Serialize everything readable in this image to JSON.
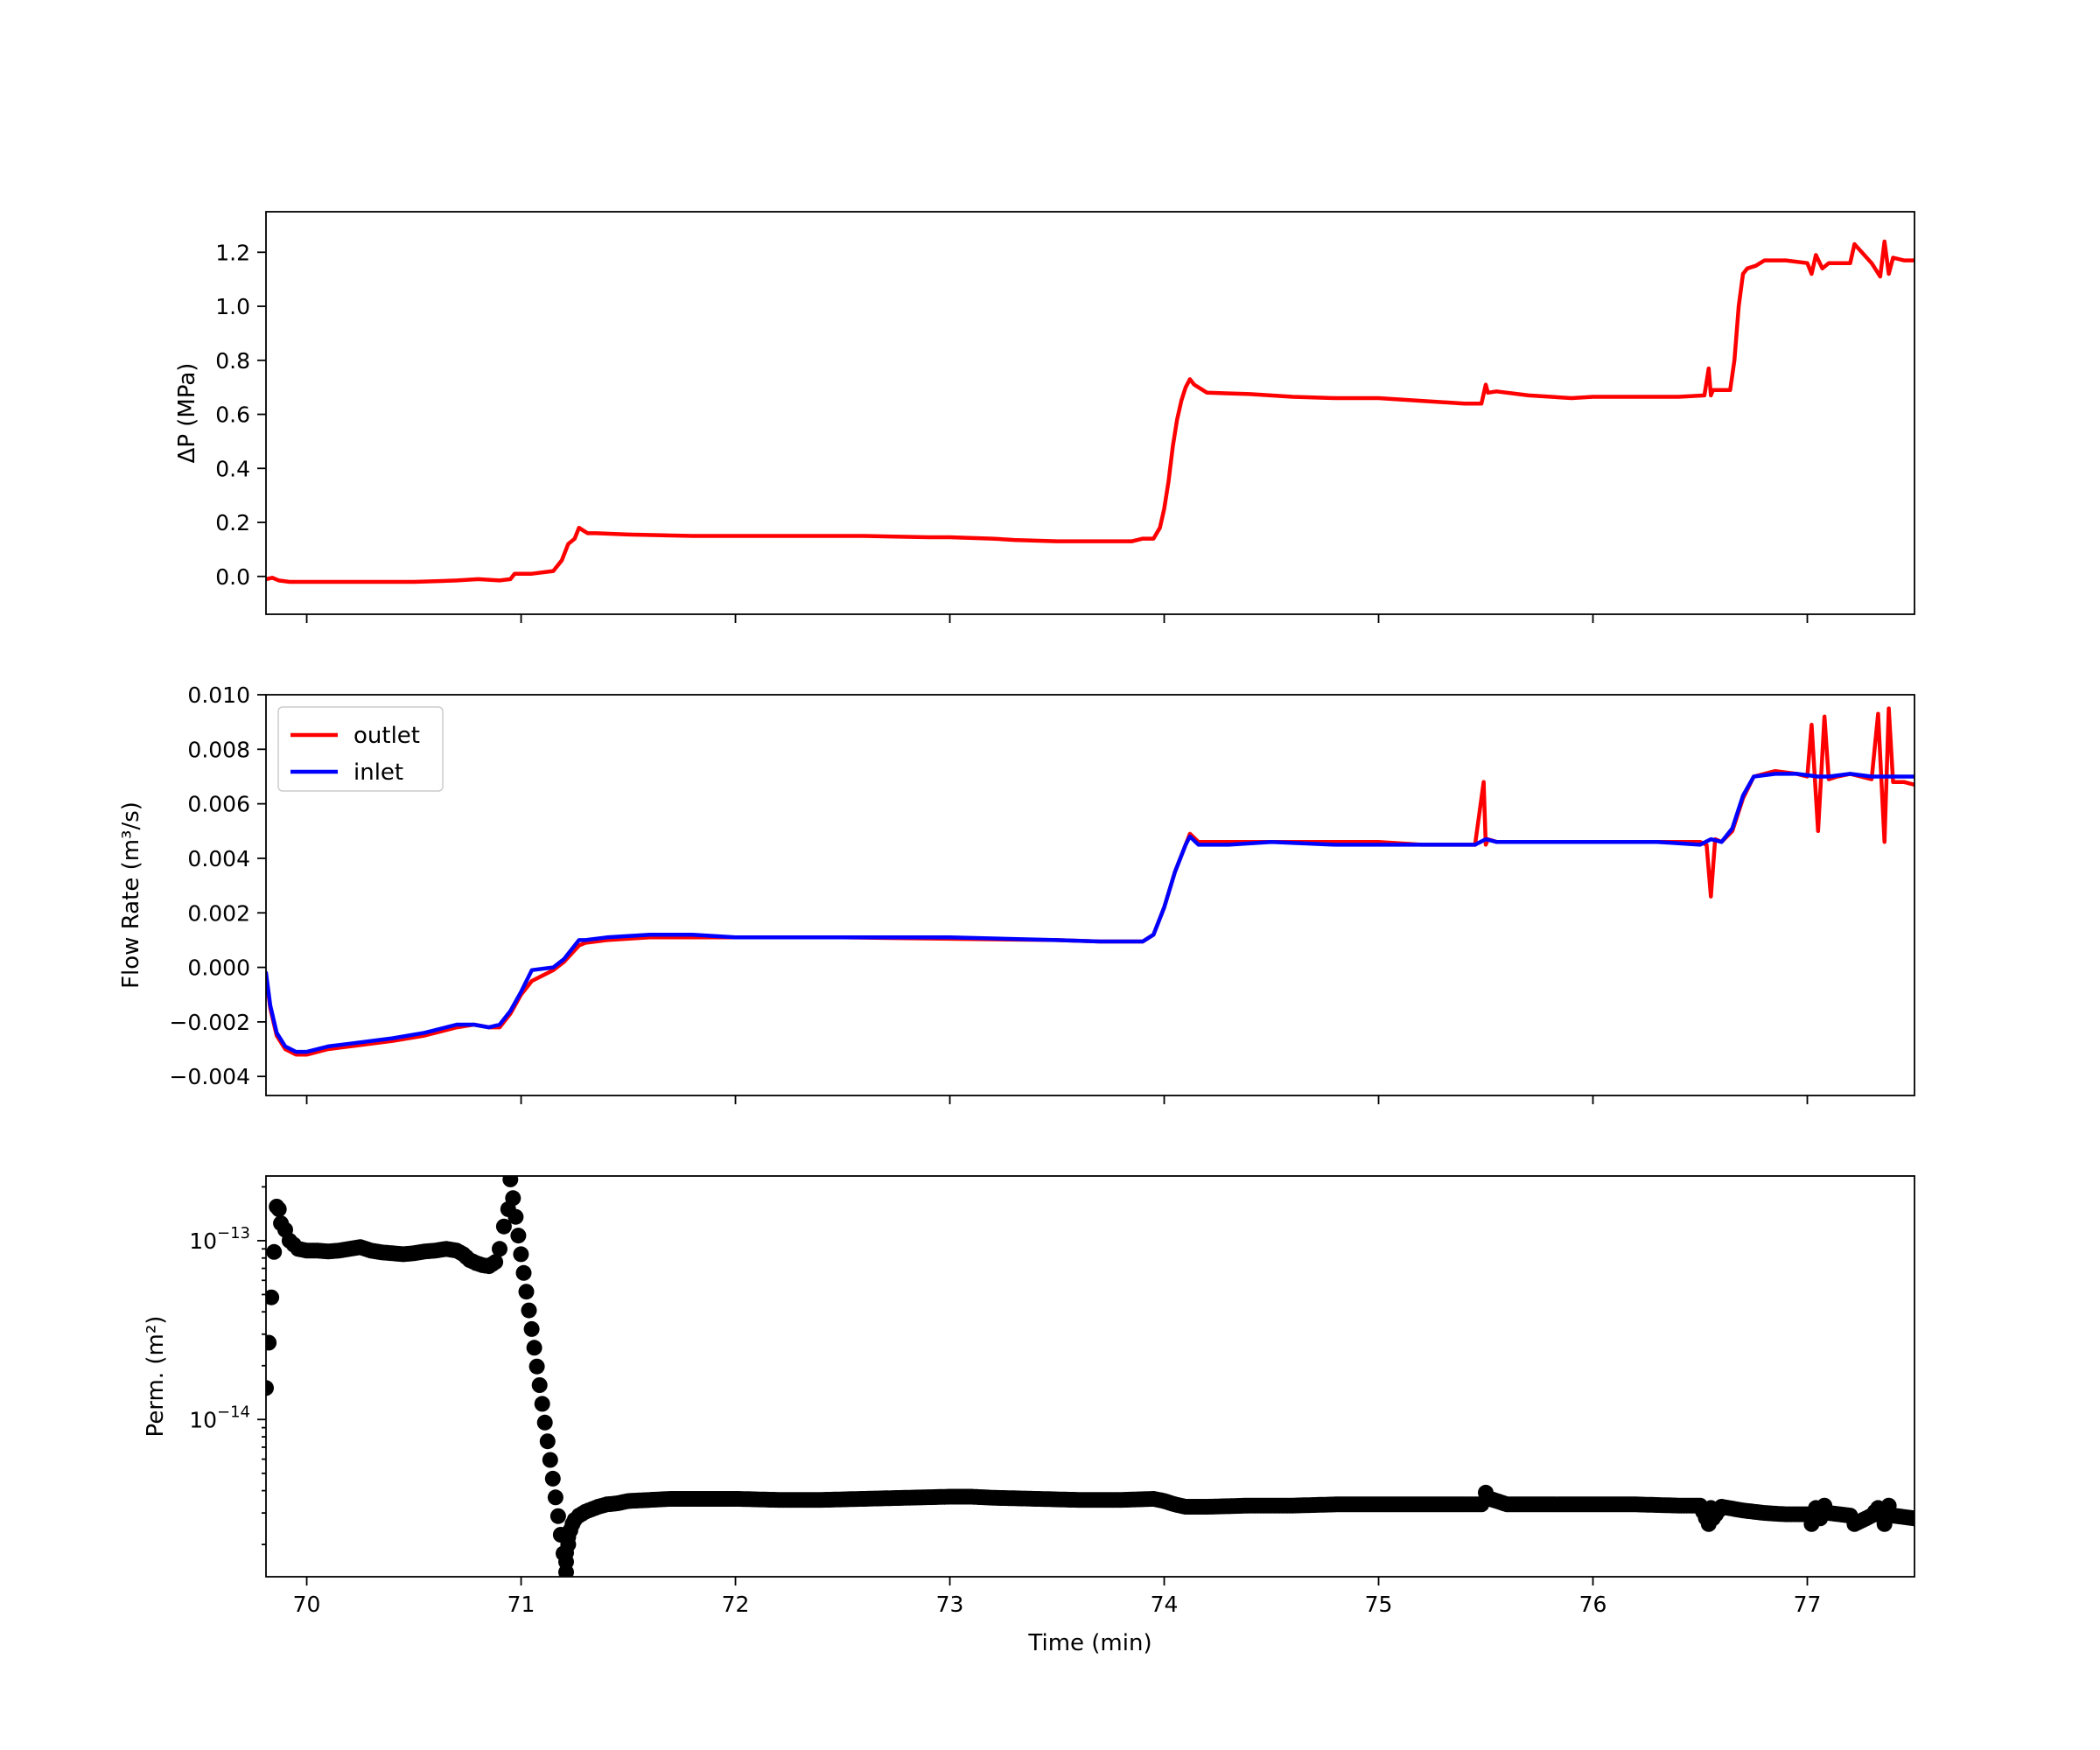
{
  "colors": {
    "outlet": "#ff0000",
    "inlet": "#0000ff",
    "perm": "#000000"
  },
  "chart_data": [
    {
      "type": "line",
      "title": "",
      "xlabel": "",
      "ylabel": "ΔP (MPa)",
      "xlim": [
        69.81,
        77.5
      ],
      "ylim": [
        -0.14,
        1.35
      ],
      "x_ticks": [
        70,
        71,
        72,
        73,
        74,
        75,
        76,
        77
      ],
      "x_tick_labels_visible": false,
      "y_ticks": [
        0.0,
        0.2,
        0.4,
        0.6,
        0.8,
        1.0,
        1.2
      ],
      "y_tick_labels": [
        "0.0",
        "0.2",
        "0.4",
        "0.6",
        "0.8",
        "1.0",
        "1.2"
      ],
      "grid": false,
      "series": [
        {
          "color": "#ff0000",
          "x": [
            69.81,
            69.84,
            69.87,
            69.92,
            70.2,
            70.5,
            70.7,
            70.8,
            70.9,
            70.95,
            70.97,
            71.0,
            71.05,
            71.15,
            71.19,
            71.22,
            71.25,
            71.27,
            71.29,
            71.31,
            71.35,
            71.5,
            71.8,
            72.0,
            72.3,
            72.6,
            72.9,
            73.0,
            73.2,
            73.3,
            73.5,
            73.7,
            73.85,
            73.9,
            73.95,
            73.98,
            74.0,
            74.02,
            74.04,
            74.06,
            74.08,
            74.1,
            74.12,
            74.14,
            74.2,
            74.4,
            74.6,
            74.8,
            75.0,
            75.2,
            75.4,
            75.48,
            75.5,
            75.51,
            75.55,
            75.7,
            75.9,
            76.0,
            76.2,
            76.4,
            76.52,
            76.54,
            76.55,
            76.56,
            76.58,
            76.6,
            76.64,
            76.66,
            76.68,
            76.7,
            76.72,
            76.76,
            76.8,
            76.9,
            77.0,
            77.02,
            77.04,
            77.07,
            77.1,
            77.12,
            77.2,
            77.22,
            77.3,
            77.34,
            77.36,
            77.38,
            77.4,
            77.45,
            77.5
          ],
          "y": [
            -0.01,
            -0.005,
            -0.015,
            -0.02,
            -0.02,
            -0.02,
            -0.015,
            -0.01,
            -0.015,
            -0.01,
            0.01,
            0.01,
            0.01,
            0.02,
            0.06,
            0.12,
            0.14,
            0.18,
            0.17,
            0.16,
            0.16,
            0.155,
            0.15,
            0.15,
            0.15,
            0.15,
            0.145,
            0.145,
            0.14,
            0.135,
            0.13,
            0.13,
            0.13,
            0.14,
            0.14,
            0.18,
            0.25,
            0.35,
            0.48,
            0.58,
            0.65,
            0.7,
            0.73,
            0.71,
            0.68,
            0.675,
            0.665,
            0.66,
            0.66,
            0.65,
            0.64,
            0.64,
            0.71,
            0.68,
            0.685,
            0.67,
            0.66,
            0.665,
            0.665,
            0.665,
            0.67,
            0.77,
            0.67,
            0.69,
            0.69,
            0.69,
            0.69,
            0.8,
            1.0,
            1.12,
            1.14,
            1.15,
            1.17,
            1.17,
            1.16,
            1.12,
            1.19,
            1.14,
            1.16,
            1.16,
            1.16,
            1.23,
            1.16,
            1.11,
            1.24,
            1.12,
            1.18,
            1.17,
            1.17
          ]
        }
      ]
    },
    {
      "type": "line",
      "title": "",
      "xlabel": "",
      "ylabel": "Flow Rate (m³/s)",
      "xlim": [
        69.81,
        77.5
      ],
      "ylim": [
        -0.0047,
        0.01
      ],
      "x_ticks": [
        70,
        71,
        72,
        73,
        74,
        75,
        76,
        77
      ],
      "x_tick_labels_visible": false,
      "y_ticks": [
        -0.004,
        -0.002,
        0.0,
        0.002,
        0.004,
        0.006,
        0.008,
        0.01
      ],
      "y_tick_labels": [
        "−0.004",
        "−0.002",
        "0.000",
        "0.002",
        "0.004",
        "0.006",
        "0.008",
        "0.010"
      ],
      "grid": false,
      "legend": {
        "position": "top-left",
        "entries": [
          "outlet",
          "inlet"
        ]
      },
      "series": [
        {
          "name": "outlet",
          "color": "#ff0000",
          "x": [
            69.81,
            69.83,
            69.86,
            69.9,
            69.95,
            70.0,
            70.1,
            70.2,
            70.4,
            70.55,
            70.7,
            70.78,
            70.85,
            70.9,
            70.95,
            71.0,
            71.05,
            71.15,
            71.2,
            71.27,
            71.3,
            71.4,
            71.6,
            71.8,
            72.0,
            72.5,
            73.0,
            73.5,
            73.7,
            73.9,
            73.95,
            74.0,
            74.05,
            74.1,
            74.12,
            74.16,
            74.3,
            74.5,
            74.8,
            75.0,
            75.2,
            75.45,
            75.49,
            75.5,
            75.51,
            75.55,
            75.8,
            76.0,
            76.3,
            76.5,
            76.53,
            76.55,
            76.57,
            76.6,
            76.65,
            76.7,
            76.75,
            76.85,
            76.95,
            77.0,
            77.02,
            77.05,
            77.08,
            77.1,
            77.14,
            77.2,
            77.3,
            77.33,
            77.36,
            77.38,
            77.4,
            77.45,
            77.5
          ],
          "y": [
            -0.0003,
            -0.0015,
            -0.0025,
            -0.003,
            -0.0032,
            -0.0032,
            -0.003,
            -0.0029,
            -0.0027,
            -0.0025,
            -0.0022,
            -0.0021,
            -0.0022,
            -0.0022,
            -0.0017,
            -0.001,
            -0.0005,
            -0.0001,
            0.0002,
            0.0008,
            0.0009,
            0.001,
            0.0011,
            0.0011,
            0.0011,
            0.0011,
            0.00105,
            0.001,
            0.00095,
            0.00095,
            0.0012,
            0.0022,
            0.0035,
            0.0045,
            0.0049,
            0.0046,
            0.0046,
            0.0046,
            0.0046,
            0.0046,
            0.0045,
            0.0045,
            0.0068,
            0.0045,
            0.0047,
            0.0046,
            0.0046,
            0.0046,
            0.0046,
            0.0046,
            0.0045,
            0.0026,
            0.0047,
            0.0046,
            0.005,
            0.0062,
            0.007,
            0.0072,
            0.0071,
            0.007,
            0.0089,
            0.005,
            0.0092,
            0.0069,
            0.007,
            0.0071,
            0.0069,
            0.0093,
            0.0046,
            0.0095,
            0.0068,
            0.0068,
            0.0067
          ]
        },
        {
          "name": "inlet",
          "color": "#0000ff",
          "x": [
            69.81,
            69.83,
            69.86,
            69.9,
            69.95,
            70.0,
            70.1,
            70.2,
            70.4,
            70.55,
            70.7,
            70.78,
            70.85,
            70.9,
            70.95,
            71.0,
            71.05,
            71.15,
            71.2,
            71.27,
            71.3,
            71.4,
            71.6,
            71.8,
            72.0,
            72.5,
            73.0,
            73.5,
            73.7,
            73.9,
            73.95,
            74.0,
            74.05,
            74.1,
            74.12,
            74.16,
            74.3,
            74.5,
            74.8,
            75.0,
            75.2,
            75.45,
            75.5,
            75.55,
            75.8,
            76.0,
            76.3,
            76.5,
            76.55,
            76.6,
            76.65,
            76.7,
            76.75,
            76.85,
            76.95,
            77.05,
            77.1,
            77.2,
            77.3,
            77.4,
            77.5
          ],
          "y": [
            -0.0002,
            -0.0014,
            -0.0024,
            -0.0029,
            -0.0031,
            -0.0031,
            -0.0029,
            -0.0028,
            -0.0026,
            -0.0024,
            -0.0021,
            -0.0021,
            -0.0022,
            -0.0021,
            -0.0016,
            -0.0009,
            -0.0001,
            0.0,
            0.0003,
            0.001,
            0.001,
            0.0011,
            0.0012,
            0.0012,
            0.0011,
            0.0011,
            0.0011,
            0.001,
            0.00095,
            0.00095,
            0.0012,
            0.0022,
            0.0035,
            0.0045,
            0.0048,
            0.0045,
            0.0045,
            0.0046,
            0.0045,
            0.0045,
            0.0045,
            0.0045,
            0.0047,
            0.0046,
            0.0046,
            0.0046,
            0.0046,
            0.0045,
            0.0047,
            0.0046,
            0.0051,
            0.0063,
            0.007,
            0.0071,
            0.0071,
            0.007,
            0.007,
            0.0071,
            0.007,
            0.007,
            0.007
          ]
        }
      ]
    },
    {
      "type": "scatter",
      "title": "",
      "xlabel": "Time (min)",
      "ylabel": "Perm. (m²)",
      "xlim": [
        69.81,
        77.5
      ],
      "ylim": [
        1.32e-15,
        2.3e-13
      ],
      "yscale": "log",
      "x_ticks": [
        70,
        71,
        72,
        73,
        74,
        75,
        76,
        77
      ],
      "x_tick_labels": [
        "70",
        "71",
        "72",
        "73",
        "74",
        "75",
        "76",
        "77"
      ],
      "y_ticks": [
        1e-14,
        1e-13
      ],
      "y_tick_labels": [
        [
          "10",
          "−14"
        ],
        [
          "10",
          "−13"
        ]
      ],
      "grid": false,
      "series": [
        {
          "color": "#000000",
          "x": [
            69.81,
            69.86,
            69.87,
            69.88,
            69.9,
            69.92,
            69.94,
            69.96,
            70.0,
            70.05,
            70.1,
            70.15,
            70.2,
            70.25,
            70.3,
            70.35,
            70.4,
            70.45,
            70.5,
            70.55,
            70.6,
            70.65,
            70.7,
            70.73,
            70.76,
            70.79,
            70.82,
            70.85,
            70.88,
            70.9,
            70.92,
            70.94,
            70.95,
            71.21,
            71.21,
            71.21,
            71.22,
            71.22,
            71.23,
            71.24,
            71.25,
            71.27,
            71.3,
            71.33,
            71.36,
            71.4,
            71.45,
            71.5,
            71.6,
            71.7,
            71.8,
            71.9,
            72.0,
            72.2,
            72.4,
            72.6,
            72.8,
            73.0,
            73.1,
            73.2,
            73.4,
            73.6,
            73.8,
            73.95,
            74.0,
            74.05,
            74.1,
            74.2,
            74.4,
            74.6,
            74.8,
            75.0,
            75.2,
            75.4,
            75.48,
            75.5,
            75.52,
            75.6,
            75.8,
            76.0,
            76.2,
            76.4,
            76.5,
            76.54,
            76.55,
            76.56,
            76.6,
            76.7,
            76.8,
            76.9,
            77.0,
            77.02,
            77.04,
            77.06,
            77.08,
            77.1,
            77.2,
            77.22,
            77.3,
            77.33,
            77.36,
            77.38,
            77.4,
            77.45,
            77.5
          ],
          "y": [
            1.5e-14,
            1.55e-13,
            1.5e-13,
            1.25e-13,
            1.15e-13,
            1e-13,
            9.5e-14,
            9e-14,
            8.8e-14,
            8.8e-14,
            8.7e-14,
            8.8e-14,
            9e-14,
            9.2e-14,
            8.8e-14,
            8.6e-14,
            8.5e-14,
            8.4e-14,
            8.5e-14,
            8.7e-14,
            8.8e-14,
            9e-14,
            8.8e-14,
            8.4e-14,
            7.8e-14,
            7.5e-14,
            7.3e-14,
            7.2e-14,
            7.6e-14,
            9e-14,
            1.2e-13,
            1.5e-13,
            2.2e-13,
            1.4e-15,
            1.6e-15,
            1.8e-15,
            2e-15,
            2.2e-15,
            2.4e-15,
            2.6e-15,
            2.75e-15,
            2.9e-15,
            3.05e-15,
            3.15e-15,
            3.25e-15,
            3.35e-15,
            3.4e-15,
            3.5e-15,
            3.55e-15,
            3.6e-15,
            3.6e-15,
            3.6e-15,
            3.6e-15,
            3.55e-15,
            3.55e-15,
            3.6e-15,
            3.65e-15,
            3.7e-15,
            3.7e-15,
            3.65e-15,
            3.6e-15,
            3.55e-15,
            3.55e-15,
            3.6e-15,
            3.5e-15,
            3.35e-15,
            3.25e-15,
            3.25e-15,
            3.3e-15,
            3.3e-15,
            3.35e-15,
            3.35e-15,
            3.35e-15,
            3.35e-15,
            3.35e-15,
            3.9e-15,
            3.6e-15,
            3.35e-15,
            3.35e-15,
            3.35e-15,
            3.35e-15,
            3.3e-15,
            3.3e-15,
            2.6e-15,
            3.2e-15,
            2.8e-15,
            3.25e-15,
            3.1e-15,
            3e-15,
            2.95e-15,
            2.95e-15,
            2.6e-15,
            3.2e-15,
            2.8e-15,
            3.3e-15,
            3e-15,
            2.9e-15,
            2.6e-15,
            2.9e-15,
            3.2e-15,
            2.6e-15,
            3.3e-15,
            2.9e-15,
            2.85e-15,
            2.8e-15
          ]
        }
      ]
    }
  ]
}
